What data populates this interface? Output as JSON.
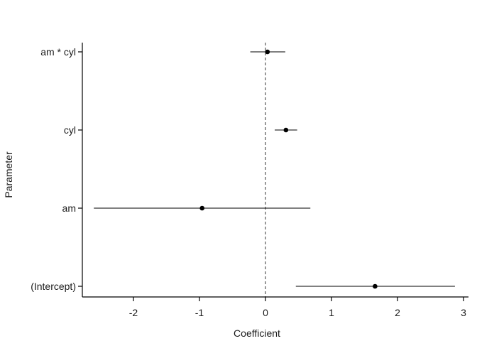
{
  "chart_data": {
    "type": "scatter",
    "title": "",
    "xlabel": "Coefficient",
    "ylabel": "Parameter",
    "xlim": [
      -2.8,
      3.05
    ],
    "xticks": [
      -2,
      -1,
      0,
      1,
      2,
      3
    ],
    "reference_line": {
      "x": 0,
      "style": "dashed"
    },
    "grid": false,
    "parameters": [
      {
        "name": "am * cyl",
        "estimate": 0.03,
        "lower": -0.23,
        "upper": 0.3
      },
      {
        "name": "cyl",
        "estimate": 0.31,
        "lower": 0.14,
        "upper": 0.48
      },
      {
        "name": "am",
        "estimate": -0.96,
        "lower": -2.6,
        "upper": 0.68
      },
      {
        "name": "(Intercept)",
        "estimate": 1.66,
        "lower": 0.46,
        "upper": 2.87
      }
    ]
  }
}
